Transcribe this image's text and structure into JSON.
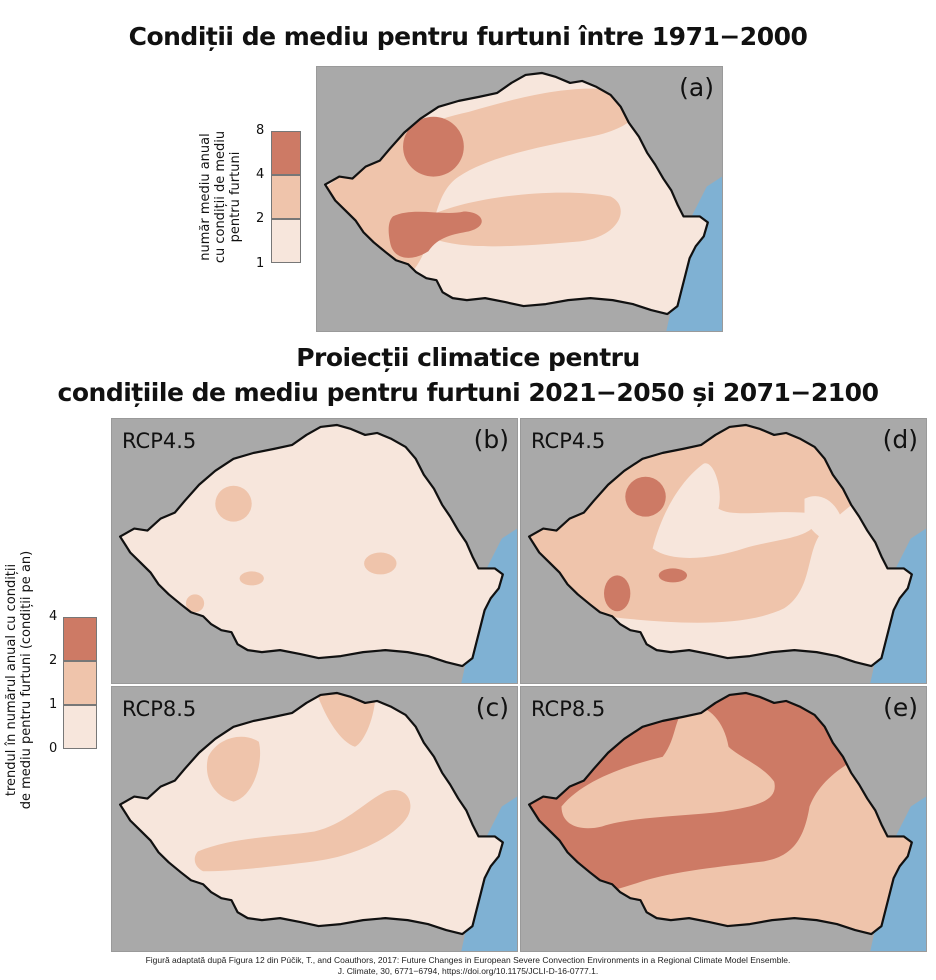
{
  "titles": {
    "historical": "Condiții de mediu pentru furtuni între 1971−2000",
    "projections_line1": "Proiecții climatice pentru",
    "projections_line2": "condițiile de mediu pentru furtuni 2021−2050 și 2071−2100"
  },
  "colors": {
    "class_low": "#f7e6dc",
    "class_mid": "#efc4ab",
    "class_high": "#cd7a65",
    "land_outside": "#a9a9a9",
    "sea": "#7fb1d3",
    "border": "#111111"
  },
  "legend_top": {
    "label_lines": [
      "număr mediu anual",
      "cu condiții de mediu",
      "pentru furtuni"
    ],
    "ticks": [
      "8",
      "4",
      "2",
      "1"
    ]
  },
  "legend_bottom": {
    "label_lines": [
      "trendul în numărul anual cu condiții",
      "de mediu pentru furtuni (condiții pe an)"
    ],
    "ticks": [
      "4",
      "2",
      "1",
      "0"
    ]
  },
  "panels": {
    "a": {
      "letter": "(a)",
      "scenario": ""
    },
    "b": {
      "letter": "(b)",
      "scenario": "RCP4.5"
    },
    "c": {
      "letter": "(c)",
      "scenario": "RCP8.5"
    },
    "d": {
      "letter": "(d)",
      "scenario": "RCP4.5"
    },
    "e": {
      "letter": "(e)",
      "scenario": "RCP8.5"
    }
  },
  "caption": {
    "line1": "Figură adaptată după Figura 12 din Púčik, T., and Coauthors, 2017: Future Changes in European Severe Convection Environments in a Regional Climate Model Ensemble.",
    "line2": "J. Climate, 30, 6771−6794, https://doi.org/10.1175/JCLI-D-16-0777.1."
  }
}
